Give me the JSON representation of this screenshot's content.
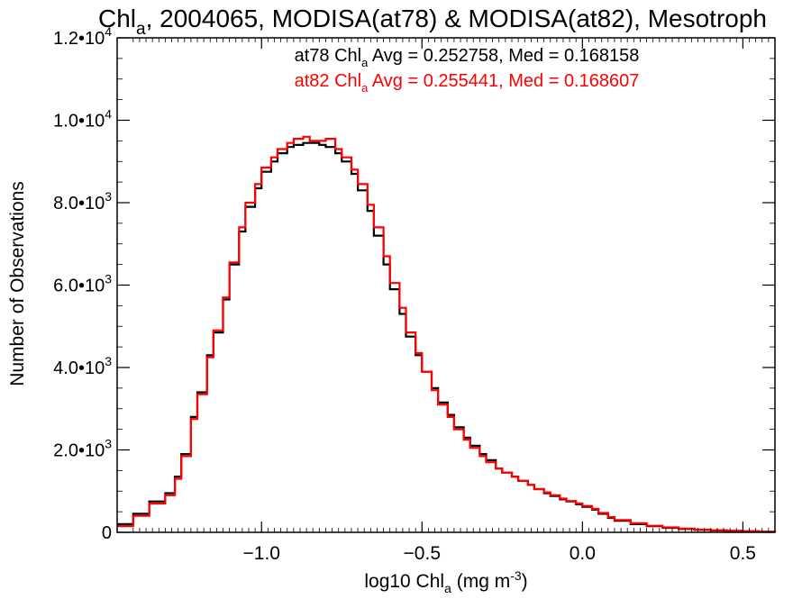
{
  "chart_data": {
    "type": "line",
    "title": {
      "pre": "Chl",
      "sub": "a",
      "post": ", 2004065, MODISA(at78) & MODISA(at82), Mesotroph"
    },
    "xlabel": {
      "pre": "log10 Chl",
      "sub": "a",
      "mid": " (mg m",
      "sup": "-3",
      "post": ")"
    },
    "ylabel": "Number of Observations",
    "xlim": [
      -1.45,
      0.6
    ],
    "ylim": [
      0,
      12000
    ],
    "xticks": [
      {
        "value": -1.0,
        "label": "−1.0"
      },
      {
        "value": -0.5,
        "label": "−0.5"
      },
      {
        "value": 0.0,
        "label": "0.0"
      },
      {
        "value": 0.5,
        "label": "0.5"
      }
    ],
    "yticks": [
      {
        "value": 0,
        "mant": "0",
        "exp": ""
      },
      {
        "value": 2000,
        "mant": "2.0•10",
        "exp": "3"
      },
      {
        "value": 4000,
        "mant": "4.0•10",
        "exp": "3"
      },
      {
        "value": 6000,
        "mant": "6.0•10",
        "exp": "3"
      },
      {
        "value": 8000,
        "mant": "8.0•10",
        "exp": "3"
      },
      {
        "value": 10000,
        "mant": "1.0•10",
        "exp": "4"
      },
      {
        "value": 12000,
        "mant": "1.2•10",
        "exp": "4"
      }
    ],
    "series": [
      {
        "color": "#000000",
        "legend": {
          "pre": "at78 Chl",
          "sub": "a",
          "post": " Avg = 0.252758, Med = 0.168158"
        },
        "points": [
          [
            -1.45,
            200
          ],
          [
            -1.4,
            450
          ],
          [
            -1.35,
            750
          ],
          [
            -1.3,
            950
          ],
          [
            -1.27,
            1350
          ],
          [
            -1.25,
            1900
          ],
          [
            -1.22,
            2800
          ],
          [
            -1.2,
            3400
          ],
          [
            -1.17,
            4300
          ],
          [
            -1.15,
            4850
          ],
          [
            -1.12,
            5650
          ],
          [
            -1.1,
            6500
          ],
          [
            -1.07,
            7300
          ],
          [
            -1.05,
            7900
          ],
          [
            -1.02,
            8350
          ],
          [
            -1.0,
            8750
          ],
          [
            -0.97,
            9000
          ],
          [
            -0.95,
            9200
          ],
          [
            -0.92,
            9350
          ],
          [
            -0.9,
            9400
          ],
          [
            -0.87,
            9450
          ],
          [
            -0.85,
            9450
          ],
          [
            -0.82,
            9400
          ],
          [
            -0.8,
            9350
          ],
          [
            -0.77,
            9200
          ],
          [
            -0.75,
            9000
          ],
          [
            -0.72,
            8700
          ],
          [
            -0.7,
            8300
          ],
          [
            -0.67,
            7800
          ],
          [
            -0.65,
            7200
          ],
          [
            -0.62,
            6500
          ],
          [
            -0.6,
            5900
          ],
          [
            -0.57,
            5300
          ],
          [
            -0.55,
            4750
          ],
          [
            -0.52,
            4300
          ],
          [
            -0.5,
            3900
          ],
          [
            -0.47,
            3500
          ],
          [
            -0.45,
            3150
          ],
          [
            -0.42,
            2850
          ],
          [
            -0.4,
            2550
          ],
          [
            -0.37,
            2300
          ],
          [
            -0.35,
            2100
          ],
          [
            -0.32,
            1900
          ],
          [
            -0.3,
            1750
          ],
          [
            -0.27,
            1550
          ],
          [
            -0.25,
            1450
          ],
          [
            -0.22,
            1350
          ],
          [
            -0.2,
            1250
          ],
          [
            -0.17,
            1150
          ],
          [
            -0.15,
            1050
          ],
          [
            -0.12,
            950
          ],
          [
            -0.1,
            880
          ],
          [
            -0.07,
            800
          ],
          [
            -0.05,
            750
          ],
          [
            -0.02,
            680
          ],
          [
            0.0,
            620
          ],
          [
            0.03,
            550
          ],
          [
            0.05,
            450
          ],
          [
            0.08,
            350
          ],
          [
            0.1,
            280
          ],
          [
            0.15,
            200
          ],
          [
            0.2,
            150
          ],
          [
            0.25,
            110
          ],
          [
            0.3,
            80
          ],
          [
            0.35,
            60
          ],
          [
            0.4,
            45
          ],
          [
            0.45,
            35
          ],
          [
            0.5,
            25
          ],
          [
            0.55,
            15
          ],
          [
            0.6,
            10
          ]
        ]
      },
      {
        "color": "#ff0000",
        "legend": {
          "pre": "at82 Chl",
          "sub": "a",
          "post": " Avg = 0.255441, Med = 0.168607"
        },
        "points": [
          [
            -1.45,
            150
          ],
          [
            -1.4,
            400
          ],
          [
            -1.35,
            700
          ],
          [
            -1.3,
            900
          ],
          [
            -1.27,
            1300
          ],
          [
            -1.25,
            1850
          ],
          [
            -1.22,
            2750
          ],
          [
            -1.2,
            3350
          ],
          [
            -1.17,
            4250
          ],
          [
            -1.15,
            4900
          ],
          [
            -1.12,
            5700
          ],
          [
            -1.1,
            6550
          ],
          [
            -1.07,
            7400
          ],
          [
            -1.05,
            8000
          ],
          [
            -1.02,
            8450
          ],
          [
            -1.0,
            8850
          ],
          [
            -0.97,
            9100
          ],
          [
            -0.95,
            9300
          ],
          [
            -0.92,
            9450
          ],
          [
            -0.9,
            9550
          ],
          [
            -0.87,
            9600
          ],
          [
            -0.85,
            9500
          ],
          [
            -0.82,
            9500
          ],
          [
            -0.8,
            9550
          ],
          [
            -0.77,
            9300
          ],
          [
            -0.75,
            9100
          ],
          [
            -0.72,
            8800
          ],
          [
            -0.7,
            8450
          ],
          [
            -0.67,
            7950
          ],
          [
            -0.65,
            7400
          ],
          [
            -0.62,
            6700
          ],
          [
            -0.6,
            6050
          ],
          [
            -0.57,
            5450
          ],
          [
            -0.55,
            4850
          ],
          [
            -0.52,
            4350
          ],
          [
            -0.5,
            3900
          ],
          [
            -0.47,
            3450
          ],
          [
            -0.45,
            3100
          ],
          [
            -0.42,
            2800
          ],
          [
            -0.4,
            2500
          ],
          [
            -0.37,
            2250
          ],
          [
            -0.35,
            2050
          ],
          [
            -0.32,
            1850
          ],
          [
            -0.3,
            1700
          ],
          [
            -0.27,
            1550
          ],
          [
            -0.25,
            1450
          ],
          [
            -0.22,
            1350
          ],
          [
            -0.2,
            1250
          ],
          [
            -0.17,
            1150
          ],
          [
            -0.15,
            1050
          ],
          [
            -0.12,
            970
          ],
          [
            -0.1,
            900
          ],
          [
            -0.07,
            820
          ],
          [
            -0.05,
            760
          ],
          [
            -0.02,
            700
          ],
          [
            0.0,
            640
          ],
          [
            0.03,
            570
          ],
          [
            0.05,
            470
          ],
          [
            0.08,
            370
          ],
          [
            0.1,
            300
          ],
          [
            0.15,
            220
          ],
          [
            0.2,
            160
          ],
          [
            0.25,
            120
          ],
          [
            0.3,
            90
          ],
          [
            0.35,
            65
          ],
          [
            0.4,
            50
          ],
          [
            0.45,
            40
          ],
          [
            0.5,
            28
          ],
          [
            0.55,
            18
          ],
          [
            0.6,
            12
          ]
        ]
      }
    ],
    "grid": false,
    "legend_position": "top-right"
  }
}
